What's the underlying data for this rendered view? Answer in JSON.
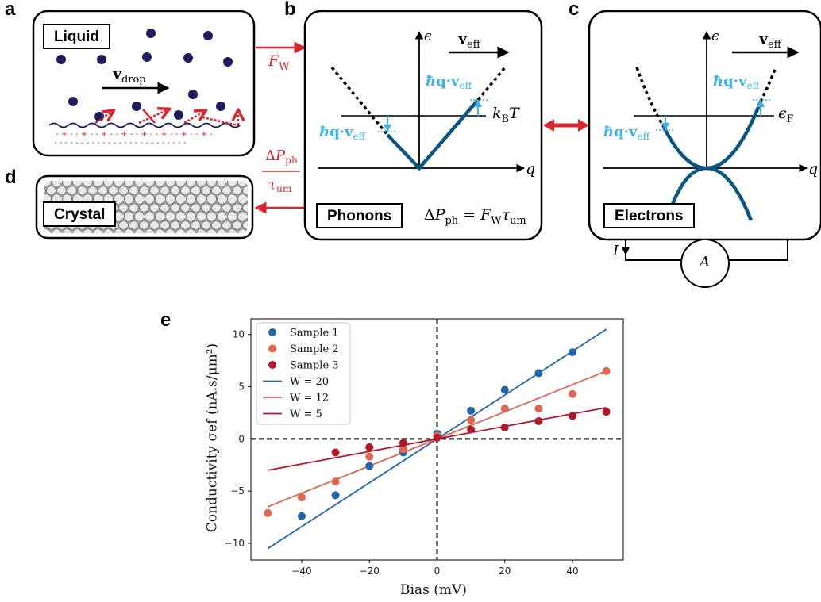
{
  "panel_letters": {
    "a": "a",
    "b": "b",
    "c": "c",
    "d": "d",
    "e": "e"
  },
  "boxes": {
    "liquid": "Liquid",
    "crystal": "Crystal",
    "phonons": "Phonons",
    "electrons": "Electrons"
  },
  "colors": {
    "dispersion": "#0b5583",
    "arrow_red": "#d9272e",
    "cyan": "#3fb3ea",
    "sample1": "#2166ac",
    "sample2": "#e06650",
    "sample3": "#b2182b",
    "navy_dot": "#1c1c5e"
  },
  "chart_data": {
    "type": "scatter",
    "xlabel": "Bias (mV)",
    "ylabel": "Conductivity  σef (nA.s/μm²)",
    "xlim": [
      -55,
      55
    ],
    "ylim": [
      -11.6,
      11.5
    ],
    "xticks": [
      -40,
      -20,
      0,
      20,
      40
    ],
    "yticks": [
      -10,
      -5,
      0,
      5,
      10
    ],
    "legend_position": "top-left",
    "series": [
      {
        "name": "Sample 1",
        "kind": "points",
        "color": "#2166ac",
        "x": [
          -40,
          -30,
          -20,
          -10,
          0,
          10,
          20,
          30,
          40
        ],
        "y": [
          -7.4,
          -5.4,
          -2.6,
          -1.3,
          0.5,
          2.7,
          4.7,
          6.3,
          8.3
        ]
      },
      {
        "name": "Sample 2",
        "kind": "points",
        "color": "#e06650",
        "x": [
          -50,
          -40,
          -30,
          -20,
          -10,
          0,
          10,
          20,
          30,
          40,
          50
        ],
        "y": [
          -7.1,
          -5.6,
          -4.1,
          -1.7,
          -1.0,
          0.3,
          1.8,
          2.9,
          2.9,
          4.3,
          6.5
        ]
      },
      {
        "name": "Sample 3",
        "kind": "points",
        "color": "#b2182b",
        "x": [
          -30,
          -20,
          -10,
          0,
          10,
          20,
          30,
          40,
          50
        ],
        "y": [
          -1.3,
          -0.8,
          -0.4,
          0.1,
          0.9,
          1.1,
          1.7,
          2.2,
          2.6
        ]
      },
      {
        "name": "W = 20",
        "kind": "line",
        "color": "#2166ac",
        "x": [
          -50,
          50
        ],
        "y": [
          -10.5,
          10.5
        ]
      },
      {
        "name": "W = 12",
        "kind": "line",
        "color": "#e06650",
        "x": [
          -50,
          50
        ],
        "y": [
          -6.5,
          6.5
        ]
      },
      {
        "name": "W = 5",
        "kind": "line",
        "color": "#b2182b",
        "x": [
          -50,
          50
        ],
        "y": [
          -3.0,
          3.0
        ]
      }
    ]
  }
}
